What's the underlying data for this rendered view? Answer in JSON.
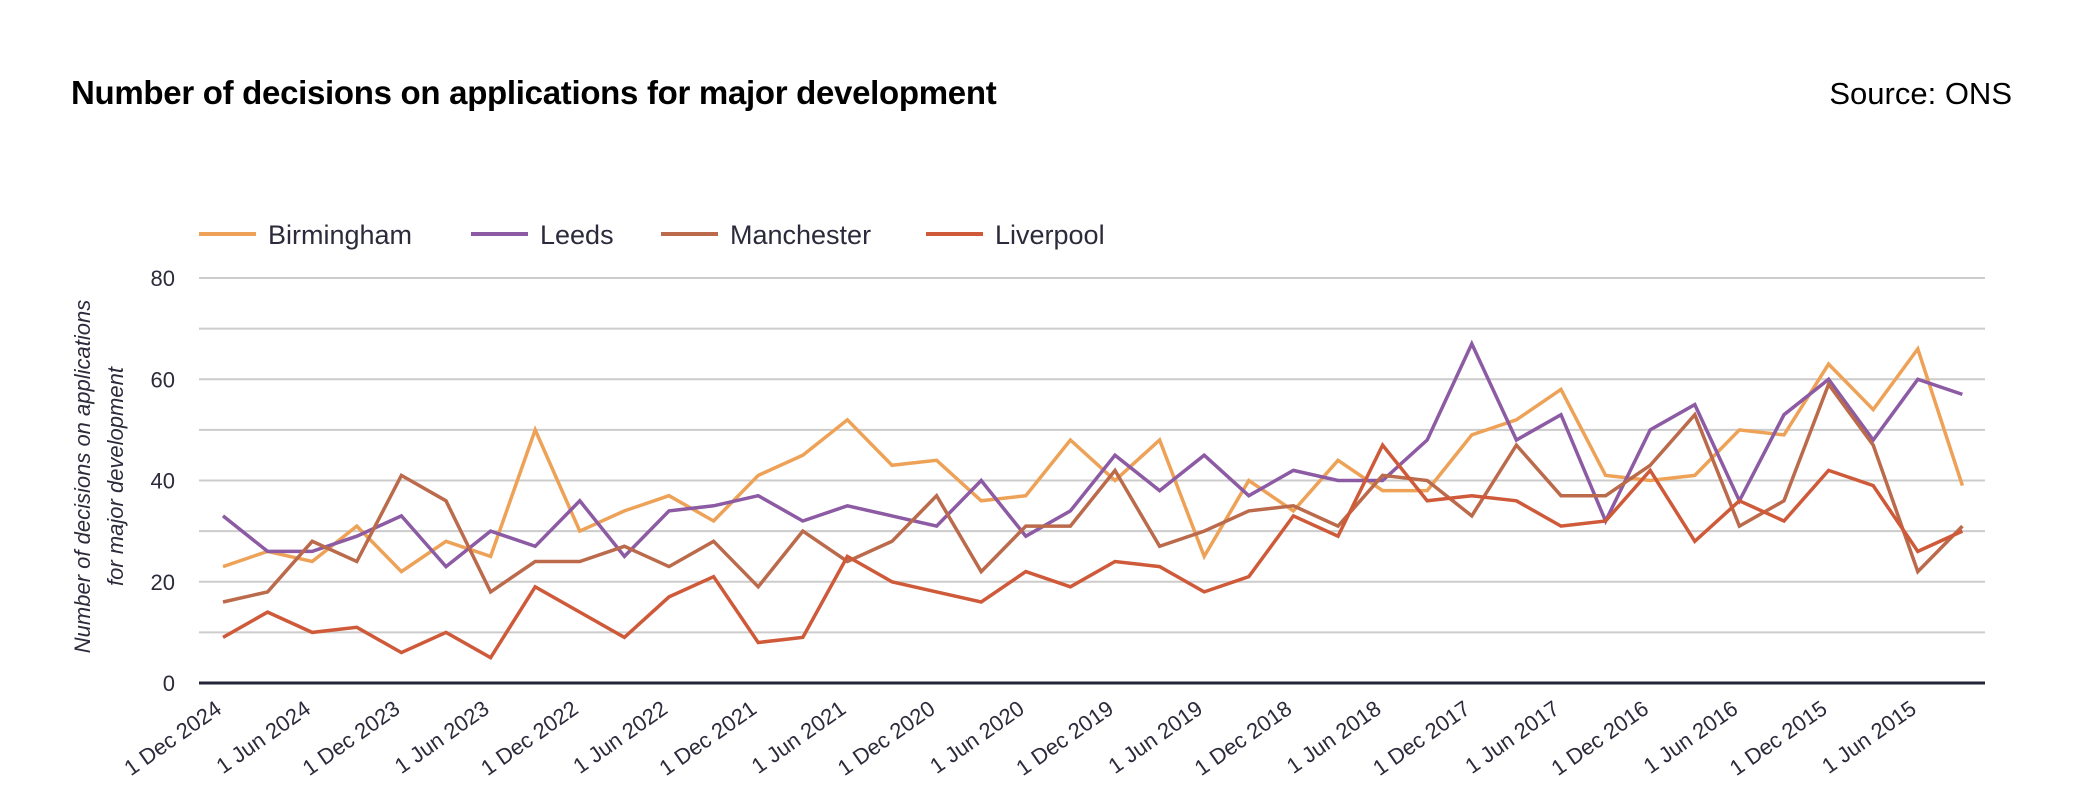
{
  "header": {
    "title": "Number of decisions on applications for major development",
    "source": "Source: ONS"
  },
  "chart_data": {
    "type": "line",
    "title": "Number of decisions on applications for major development",
    "source": "Source: ONS",
    "xlabel": "",
    "ylabel_lines": [
      "Number of decisions on applications",
      "for major development"
    ],
    "ylim": [
      0,
      80
    ],
    "yticks": [
      0,
      20,
      40,
      60,
      80
    ],
    "grid_step": 10,
    "grid": true,
    "legend_position": "top-left",
    "x": [
      "Dec 2024",
      "Sep 2024",
      "Jun 2024",
      "Mar 2024",
      "Dec 2023",
      "Sep 2023",
      "Jun 2023",
      "Mar 2023",
      "Dec 2022",
      "Sep 2022",
      "Jun 2022",
      "Mar 2022",
      "Dec 2021",
      "Sep 2021",
      "Jun 2021",
      "Mar 2021",
      "Dec 2020",
      "Sep 2020",
      "Jun 2020",
      "Mar 2020",
      "Dec 2019",
      "Sep 2019",
      "Jun 2019",
      "Mar 2019",
      "Dec 2018",
      "Sep 2018",
      "Jun 2018",
      "Mar 2018",
      "Dec 2017",
      "Sep 2017",
      "Jun 2017",
      "Mar 2017",
      "Dec 2016",
      "Sep 2016",
      "Jun 2016",
      "Mar 2016",
      "Dec 2015",
      "Sep 2015",
      "Jun 2015",
      "Mar 2015"
    ],
    "xtick_labels": [
      "1 Dec 2024",
      "1 Jun 2024",
      "1 Dec 2023",
      "1 Jun 2023",
      "1 Dec 2022",
      "1 Jun 2022",
      "1 Dec 2021",
      "1 Jun 2021",
      "1 Dec 2020",
      "1 Jun 2020",
      "1 Dec 2019",
      "1 Jun 2019",
      "1 Dec 2018",
      "1 Jun 2018",
      "1 Dec 2017",
      "1 Jun 2017",
      "1 Dec 2016",
      "1 Jun 2016",
      "1 Dec 2015",
      "1 Jun 2015"
    ],
    "series": [
      {
        "name": "Birmingham",
        "color": "#eda257",
        "values": [
          23,
          26,
          24,
          31,
          22,
          28,
          25,
          50,
          30,
          34,
          37,
          32,
          41,
          45,
          52,
          43,
          44,
          36,
          37,
          48,
          40,
          48,
          25,
          40,
          34,
          44,
          38,
          38,
          49,
          52,
          58,
          41,
          40,
          41,
          50,
          49,
          63,
          54,
          66,
          39
        ]
      },
      {
        "name": "Leeds",
        "color": "#8c5ba3",
        "values": [
          33,
          26,
          26,
          29,
          33,
          23,
          30,
          27,
          36,
          25,
          34,
          35,
          37,
          32,
          35,
          33,
          31,
          40,
          29,
          34,
          45,
          38,
          45,
          37,
          42,
          40,
          40,
          48,
          67,
          48,
          53,
          32,
          50,
          55,
          36,
          53,
          60,
          48,
          60,
          57
        ]
      },
      {
        "name": "Manchester",
        "color": "#bb6a4b",
        "values": [
          16,
          18,
          28,
          24,
          41,
          36,
          18,
          24,
          24,
          27,
          23,
          28,
          19,
          30,
          24,
          28,
          37,
          22,
          31,
          31,
          42,
          27,
          30,
          34,
          35,
          31,
          41,
          40,
          33,
          47,
          37,
          37,
          43,
          53,
          31,
          36,
          59,
          47,
          22,
          31
        ]
      },
      {
        "name": "Liverpool",
        "color": "#cf5a3a",
        "values": [
          9,
          14,
          10,
          11,
          6,
          10,
          5,
          19,
          14,
          9,
          17,
          21,
          8,
          9,
          25,
          20,
          18,
          16,
          22,
          19,
          24,
          23,
          18,
          21,
          33,
          29,
          47,
          36,
          37,
          36,
          31,
          32,
          42,
          28,
          36,
          32,
          42,
          39,
          26,
          30
        ]
      }
    ]
  }
}
